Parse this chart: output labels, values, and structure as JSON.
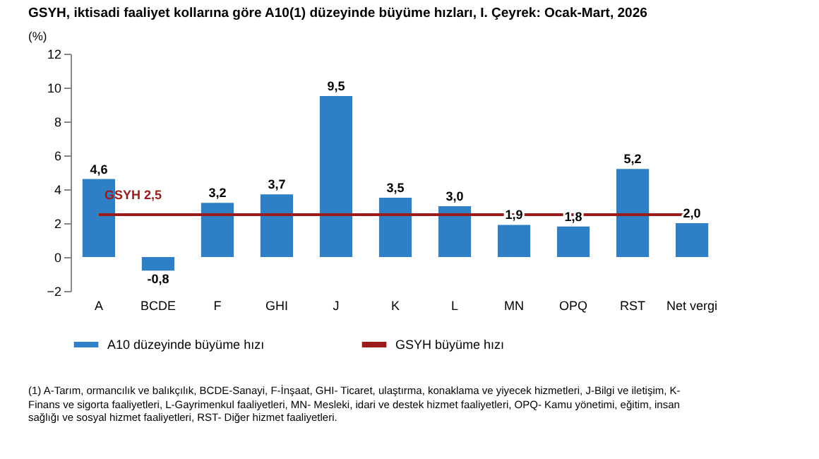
{
  "chart_data": {
    "type": "bar",
    "title": "GSYH, iktisadi faaliyet kollarına göre A10(1) düzeyinde büyüme hızları, I. Çeyrek: Ocak-Mart, 2026",
    "ylabel": "(%)",
    "categories": [
      "A",
      "BCDE",
      "F",
      "GHI",
      "J",
      "K",
      "L",
      "MN",
      "OPQ",
      "RST",
      "Net vergi"
    ],
    "series": [
      {
        "name": "A10 düzeyinde büyüme hızı",
        "color": "#2e7fc6",
        "values": [
          4.6,
          -0.8,
          3.2,
          3.7,
          9.5,
          3.5,
          3.0,
          1.9,
          1.8,
          5.2,
          2.0
        ],
        "value_labels": [
          "4,6",
          "-0,8",
          "3,2",
          "3,7",
          "9,5",
          "3,5",
          "3,0",
          "1,9",
          "1,8",
          "5,2",
          "2,0"
        ]
      },
      {
        "name": "GSYH büyüme hızı",
        "type": "line",
        "color": "#9b1b1b",
        "values": [
          2.5,
          2.5,
          2.5,
          2.5,
          2.5,
          2.5,
          2.5,
          2.5,
          2.5,
          2.5,
          2.5
        ]
      }
    ],
    "ylim": [
      -2,
      12
    ],
    "yticks": [
      -2,
      0,
      2,
      4,
      6,
      8,
      10,
      12
    ],
    "grid": false,
    "legend": "bottom",
    "annotations": [
      {
        "text": "GSYH 2,5",
        "x": "A",
        "y": 2.5
      },
      "(1) A-Tarım, ormancılık ve balıkçılık, BCDE-Sanayi, F-İnşaat, GHI- Ticaret, ulaştırma, konaklama ve yiyecek hizmetleri, J-Bilgi ve iletişim, K-Finans ve sigorta faaliyetleri, L-Gayrimenkul faaliyetleri, MN- Mesleki, idari ve destek hizmet faaliyetleri, OPQ- Kamu yönetimi, eğitim, insan sağlığı ve sosyal hizmet faaliyetleri, RST- Diğer hizmet faaliyetleri."
    ]
  }
}
